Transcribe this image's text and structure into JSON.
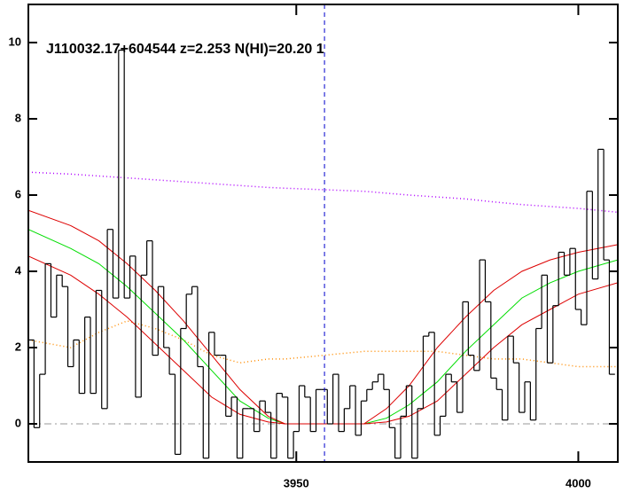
{
  "chart_data": {
    "type": "line",
    "title": "J110032.17+604544 z=2.253 N(HI)=20.20 1",
    "xlim": [
      3902.5,
      4007
    ],
    "ylim": [
      -1,
      11
    ],
    "xticks": [
      3950,
      4000
    ],
    "yticks": [
      0,
      2,
      4,
      6,
      8,
      10
    ],
    "bins": [
      3902.5,
      3903.5,
      3904.5,
      3905.5,
      3906.5,
      3907.5,
      3908.5,
      3909.5,
      3910.5,
      3911.5,
      3912.5,
      3913.5,
      3914.5,
      3915.5,
      3916.5,
      3917.5,
      3918.5,
      3919.5,
      3920.5,
      3921.5,
      3922.5,
      3923.5,
      3924.5,
      3925.5,
      3926.5,
      3927.5,
      3928.5,
      3929.5,
      3930.5,
      3931.5,
      3932.5,
      3933.5,
      3934.5,
      3935.5,
      3936.5,
      3937.5,
      3938.5,
      3939.5,
      3940.5,
      3941.5,
      3942.5,
      3943.5,
      3944.5,
      3945.5,
      3946.5,
      3947.5,
      3948.5,
      3949.5,
      3950.5,
      3951.5,
      3952.5,
      3953.5,
      3954.5,
      3955.5,
      3956.5,
      3957.5,
      3958.5,
      3959.5,
      3960.5,
      3961.5,
      3962.5,
      3963.5,
      3964.5,
      3965.5,
      3966.5,
      3967.5,
      3968.5,
      3969.5,
      3970.5,
      3971.5,
      3972.5,
      3973.5,
      3974.5,
      3975.5,
      3976.5,
      3977.5,
      3978.5,
      3979.5,
      3980.5,
      3981.5,
      3982.5,
      3983.5,
      3984.5,
      3985.5,
      3986.5,
      3987.5,
      3988.5,
      3989.5,
      3990.5,
      3991.5,
      3992.5,
      3993.5,
      3994.5,
      3995.5,
      3996.5,
      3997.5,
      3998.5,
      3999.5,
      4000.5,
      4001.5,
      4002.5,
      4003.5,
      4004.5,
      4005.5,
      4006.5
    ],
    "spectrum": {
      "color": "#000000",
      "values": [
        2.2,
        -0.1,
        1.3,
        4.2,
        2.8,
        3.9,
        3.6,
        1.5,
        2.2,
        0.8,
        2.8,
        0.8,
        3.5,
        0.4,
        5.1,
        3.3,
        9.8,
        3.3,
        4.4,
        0.7,
        3.9,
        4.8,
        1.8,
        3.6,
        2.0,
        1.3,
        -0.8,
        2.5,
        3.4,
        3.6,
        1.5,
        -0.9,
        2.4,
        1.8,
        1.8,
        0.2,
        0.7,
        -0.9,
        0.4,
        0.4,
        -0.2,
        0.6,
        0.3,
        -0.9,
        0.8,
        0.7,
        -0.9,
        -0.2,
        1.0,
        0.7,
        -0.2,
        0.9,
        0.9,
        0.0,
        1.3,
        -0.2,
        0.4,
        1.0,
        -0.3,
        0.6,
        0.9,
        1.1,
        1.3,
        0.9,
        -0.1,
        -0.9,
        0.2,
        1.0,
        -0.9,
        0.4,
        2.3,
        2.4,
        -0.3,
        0.2,
        1.3,
        1.1,
        0.3,
        3.2,
        1.8,
        1.4,
        4.3,
        3.2,
        1.2,
        0.9,
        0.1,
        2.3,
        1.6,
        0.3,
        1.1,
        0.1,
        2.5,
        3.9,
        1.6,
        3.1,
        4.5,
        3.9,
        4.6,
        3.0,
        2.6,
        6.1,
        3.8,
        7.2,
        4.3,
        1.3
      ]
    },
    "x": [
      3902.5,
      3910,
      3915,
      3920,
      3925,
      3930,
      3935,
      3940,
      3945,
      3948,
      3962,
      3966,
      3970,
      3975,
      3980,
      3985,
      3990,
      3995,
      4000,
      4007
    ],
    "series": [
      {
        "color": "#ff8c00",
        "style": "dotted",
        "values": [
          2.2,
          2.0,
          2.4,
          2.7,
          2.5,
          2.2,
          1.8,
          1.6,
          1.7,
          1.7,
          1.9,
          1.9,
          1.9,
          1.9,
          1.8,
          1.7,
          1.7,
          1.6,
          1.5,
          1.5
        ]
      },
      {
        "color": "#b000ff",
        "style": "dotted",
        "values": [
          6.6,
          6.55,
          6.5,
          6.45,
          6.4,
          6.35,
          6.3,
          6.25,
          6.2,
          6.18,
          6.1,
          6.05,
          6.0,
          5.95,
          5.9,
          5.82,
          5.75,
          5.7,
          5.65,
          5.55
        ]
      },
      {
        "color": "#00dd00",
        "style": "solid",
        "values": [
          5.1,
          4.6,
          4.2,
          3.6,
          2.9,
          2.2,
          1.4,
          0.6,
          0.15,
          0.0,
          0.0,
          0.15,
          0.5,
          1.1,
          1.9,
          2.6,
          3.3,
          3.7,
          4.0,
          4.3
        ]
      },
      {
        "color": "#dd0000",
        "style": "solid",
        "values": [
          5.6,
          5.2,
          4.8,
          4.2,
          3.5,
          2.7,
          1.8,
          0.9,
          0.2,
          0.0,
          0.0,
          0.4,
          1.0,
          2.0,
          2.8,
          3.5,
          4.0,
          4.3,
          4.5,
          4.7
        ]
      },
      {
        "color": "#dd0000",
        "style": "solid",
        "values": [
          4.4,
          3.9,
          3.4,
          2.8,
          2.1,
          1.4,
          0.7,
          0.25,
          0.05,
          0.0,
          0.0,
          0.05,
          0.2,
          0.6,
          1.3,
          2.0,
          2.6,
          3.0,
          3.4,
          3.7
        ]
      }
    ],
    "hline": {
      "value": 0,
      "color": "#999999"
    },
    "vline": {
      "value": 3955,
      "color": "#0000cc"
    }
  }
}
